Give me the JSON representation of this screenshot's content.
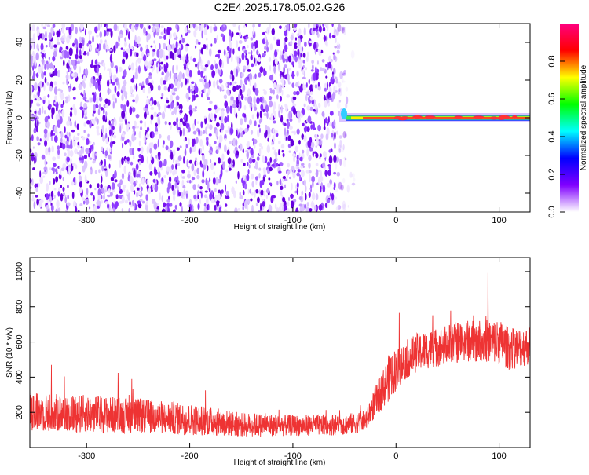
{
  "title": "C2E4.2025.178.05.02.G26",
  "chart_data": [
    {
      "type": "heatmap",
      "xlabel": "Height of straight line (km)",
      "ylabel": "Frequency (Hz)",
      "xlim": [
        -355,
        130
      ],
      "ylim": [
        -50,
        50
      ],
      "xticks": [
        -300,
        -200,
        -100,
        0,
        100
      ],
      "yticks": [
        -40,
        -20,
        0,
        20,
        40
      ],
      "grid": false,
      "noise_region_x": [
        -355,
        -40
      ],
      "signal_region_x": [
        -55,
        130
      ],
      "signal_frequency_hz": 0,
      "colorbar": {
        "label": "Normalized spectral amplitude",
        "range": [
          0.0,
          1.0
        ],
        "ticks": [
          "0.0",
          "0.2",
          "0.4",
          "0.6",
          "0.8"
        ],
        "colormap": [
          "#ffffff",
          "#8000ff",
          "#0000ff",
          "#00ffff",
          "#00ff00",
          "#ffff00",
          "#ff0000",
          "#ff0080"
        ]
      }
    },
    {
      "type": "line",
      "xlabel": "Height of straight line (km)",
      "ylabel": "SNR (10 * v/v)",
      "xlim": [
        -355,
        130
      ],
      "ylim": [
        0,
        1080
      ],
      "xticks": [
        -300,
        -200,
        -100,
        0,
        100
      ],
      "yticks": [
        200,
        400,
        600,
        800,
        1000
      ],
      "grid": false,
      "series_color": "#ee3333",
      "series": [
        {
          "x": [
            -350,
            -300,
            -250,
            -200,
            -150,
            -100,
            -50,
            -30,
            -20,
            -10,
            -5,
            0,
            10,
            20,
            40,
            60,
            80,
            100,
            110,
            130
          ],
          "values": [
            200,
            190,
            180,
            160,
            130,
            125,
            130,
            150,
            260,
            360,
            420,
            440,
            500,
            540,
            570,
            600,
            610,
            600,
            560,
            580
          ],
          "spread": [
            110,
            110,
            100,
            90,
            70,
            60,
            60,
            60,
            90,
            120,
            140,
            120,
            110,
            110,
            110,
            120,
            120,
            130,
            120,
            110
          ]
        }
      ]
    }
  ]
}
